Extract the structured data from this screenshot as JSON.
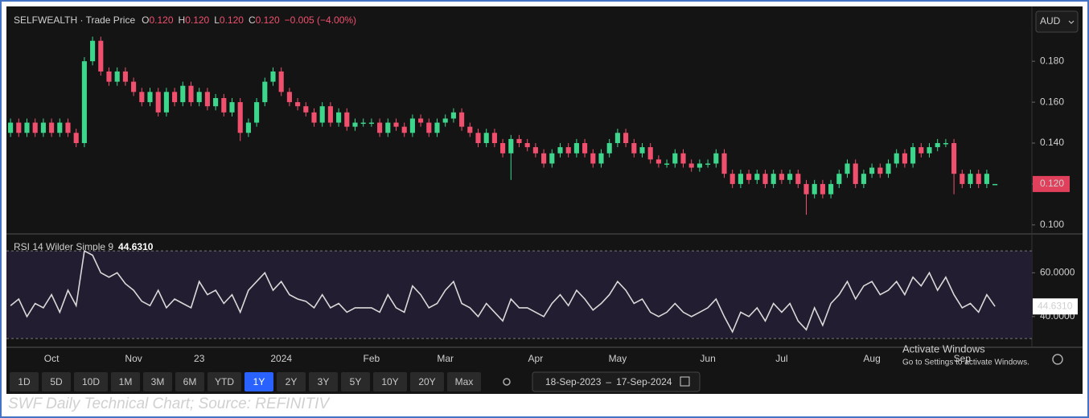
{
  "chart_data": [
    {
      "type": "candlestick",
      "title": "SELFWEALTH · Trade Price",
      "ohlc": [
        {
          "key": "O",
          "value": "0.120"
        },
        {
          "key": "H",
          "value": "0.120"
        },
        {
          "key": "L",
          "value": "0.120"
        },
        {
          "key": "C",
          "value": "0.120"
        }
      ],
      "change": "−0.005 (−4.00%)",
      "currency": "AUD",
      "last_label": "0.120",
      "up_color": "#3dd68c",
      "down_color": "#f0506e",
      "ylim": [
        0.096,
        0.206
      ],
      "yticks": [
        {
          "value": 0.1,
          "label": "0.100"
        },
        {
          "value": 0.12,
          "label": "0.120"
        },
        {
          "value": 0.14,
          "label": "0.140"
        },
        {
          "value": 0.16,
          "label": "0.160"
        },
        {
          "value": 0.18,
          "label": "0.180"
        }
      ],
      "open": [
        0.145,
        0.15,
        0.145,
        0.15,
        0.145,
        0.15,
        0.145,
        0.15,
        0.145,
        0.14,
        0.18,
        0.19,
        0.175,
        0.17,
        0.175,
        0.17,
        0.165,
        0.16,
        0.165,
        0.155,
        0.165,
        0.16,
        0.168,
        0.16,
        0.165,
        0.158,
        0.162,
        0.155,
        0.16,
        0.145,
        0.15,
        0.16,
        0.17,
        0.175,
        0.165,
        0.16,
        0.158,
        0.155,
        0.15,
        0.158,
        0.15,
        0.155,
        0.148,
        0.15,
        0.15,
        0.15,
        0.145,
        0.15,
        0.148,
        0.145,
        0.152,
        0.15,
        0.145,
        0.15,
        0.152,
        0.155,
        0.148,
        0.145,
        0.14,
        0.145,
        0.14,
        0.135,
        0.142,
        0.14,
        0.138,
        0.135,
        0.13,
        0.135,
        0.138,
        0.135,
        0.14,
        0.135,
        0.13,
        0.135,
        0.14,
        0.145,
        0.14,
        0.135,
        0.138,
        0.132,
        0.13,
        0.13,
        0.135,
        0.13,
        0.128,
        0.13,
        0.13,
        0.135,
        0.125,
        0.12,
        0.125,
        0.122,
        0.125,
        0.12,
        0.125,
        0.122,
        0.125,
        0.12,
        0.115,
        0.12,
        0.115,
        0.12,
        0.125,
        0.13,
        0.12,
        0.125,
        0.128,
        0.125,
        0.13,
        0.135,
        0.13,
        0.138,
        0.135,
        0.138,
        0.14,
        0.14,
        0.125,
        0.12,
        0.125,
        0.12,
        0.12,
        null,
        null,
        null,
        null
      ],
      "high": [
        0.152,
        0.152,
        0.152,
        0.152,
        0.152,
        0.152,
        0.152,
        0.152,
        0.147,
        0.182,
        0.192,
        0.192,
        0.177,
        0.177,
        0.177,
        0.172,
        0.167,
        0.167,
        0.167,
        0.167,
        0.167,
        0.17,
        0.17,
        0.167,
        0.167,
        0.164,
        0.164,
        0.162,
        0.162,
        0.152,
        0.162,
        0.172,
        0.177,
        0.177,
        0.167,
        0.162,
        0.16,
        0.157,
        0.16,
        0.16,
        0.157,
        0.157,
        0.152,
        0.152,
        0.152,
        0.152,
        0.152,
        0.152,
        0.15,
        0.154,
        0.154,
        0.152,
        0.152,
        0.154,
        0.157,
        0.157,
        0.15,
        0.147,
        0.147,
        0.147,
        0.142,
        0.144,
        0.144,
        0.142,
        0.14,
        0.137,
        0.137,
        0.14,
        0.14,
        0.142,
        0.142,
        0.137,
        0.137,
        0.142,
        0.147,
        0.147,
        0.142,
        0.14,
        0.14,
        0.134,
        0.132,
        0.137,
        0.137,
        0.132,
        0.132,
        0.132,
        0.137,
        0.137,
        0.127,
        0.127,
        0.127,
        0.127,
        0.127,
        0.127,
        0.127,
        0.127,
        0.127,
        0.122,
        0.122,
        0.122,
        0.122,
        0.127,
        0.132,
        0.132,
        0.127,
        0.13,
        0.13,
        0.132,
        0.137,
        0.137,
        0.14,
        0.14,
        0.14,
        0.142,
        0.142,
        0.142,
        0.127,
        0.127,
        0.127,
        0.127,
        0.12,
        null,
        null,
        null,
        null
      ],
      "low": [
        0.143,
        0.143,
        0.143,
        0.143,
        0.143,
        0.143,
        0.143,
        0.143,
        0.138,
        0.138,
        0.178,
        0.173,
        0.168,
        0.168,
        0.168,
        0.163,
        0.158,
        0.158,
        0.153,
        0.153,
        0.158,
        0.158,
        0.158,
        0.158,
        0.156,
        0.156,
        0.153,
        0.153,
        0.141,
        0.143,
        0.148,
        0.158,
        0.168,
        0.163,
        0.158,
        0.156,
        0.153,
        0.148,
        0.148,
        0.148,
        0.148,
        0.146,
        0.146,
        0.148,
        0.148,
        0.143,
        0.143,
        0.146,
        0.143,
        0.143,
        0.148,
        0.143,
        0.143,
        0.148,
        0.15,
        0.146,
        0.143,
        0.138,
        0.138,
        0.138,
        0.133,
        0.122,
        0.138,
        0.136,
        0.133,
        0.128,
        0.128,
        0.133,
        0.133,
        0.133,
        0.133,
        0.128,
        0.128,
        0.133,
        0.138,
        0.138,
        0.133,
        0.133,
        0.13,
        0.128,
        0.128,
        0.128,
        0.128,
        0.126,
        0.126,
        0.128,
        0.128,
        0.123,
        0.118,
        0.118,
        0.12,
        0.12,
        0.118,
        0.118,
        0.12,
        0.12,
        0.118,
        0.105,
        0.113,
        0.113,
        0.113,
        0.118,
        0.123,
        0.118,
        0.118,
        0.123,
        0.123,
        0.123,
        0.128,
        0.128,
        0.128,
        0.133,
        0.133,
        0.136,
        0.138,
        0.115,
        0.118,
        0.118,
        0.118,
        0.118,
        0.12,
        null,
        null,
        null,
        null
      ],
      "close": [
        0.15,
        0.145,
        0.15,
        0.145,
        0.15,
        0.145,
        0.15,
        0.145,
        0.14,
        0.18,
        0.19,
        0.175,
        0.17,
        0.175,
        0.17,
        0.165,
        0.16,
        0.165,
        0.155,
        0.165,
        0.16,
        0.168,
        0.16,
        0.165,
        0.158,
        0.162,
        0.155,
        0.16,
        0.145,
        0.15,
        0.16,
        0.17,
        0.175,
        0.165,
        0.16,
        0.158,
        0.155,
        0.15,
        0.158,
        0.15,
        0.155,
        0.148,
        0.15,
        0.15,
        0.15,
        0.145,
        0.15,
        0.148,
        0.145,
        0.152,
        0.15,
        0.145,
        0.15,
        0.152,
        0.155,
        0.148,
        0.145,
        0.14,
        0.145,
        0.14,
        0.135,
        0.142,
        0.14,
        0.138,
        0.135,
        0.13,
        0.135,
        0.138,
        0.135,
        0.14,
        0.135,
        0.13,
        0.135,
        0.14,
        0.145,
        0.14,
        0.135,
        0.138,
        0.132,
        0.13,
        0.13,
        0.135,
        0.13,
        0.128,
        0.13,
        0.13,
        0.135,
        0.125,
        0.12,
        0.125,
        0.122,
        0.125,
        0.12,
        0.125,
        0.122,
        0.125,
        0.12,
        0.115,
        0.12,
        0.115,
        0.12,
        0.125,
        0.13,
        0.12,
        0.125,
        0.128,
        0.125,
        0.13,
        0.135,
        0.13,
        0.138,
        0.135,
        0.138,
        0.14,
        0.14,
        0.125,
        0.12,
        0.125,
        0.12,
        0.125,
        0.12,
        null,
        null,
        null,
        null
      ]
    },
    {
      "type": "line",
      "categories": [
        null,
        null,
        null,
        null,
        null,
        "Oct",
        null,
        null,
        null,
        null,
        null,
        null,
        null,
        null,
        null,
        "Nov",
        null,
        null,
        null,
        null,
        null,
        null,
        null,
        "23",
        null,
        null,
        null,
        null,
        null,
        null,
        null,
        null,
        null,
        "2024",
        null,
        null,
        null,
        null,
        null,
        null,
        null,
        null,
        null,
        null,
        "Feb",
        null,
        null,
        null,
        null,
        null,
        null,
        null,
        null,
        "Mar",
        null,
        null,
        null,
        null,
        null,
        null,
        null,
        null,
        null,
        null,
        "Apr",
        null,
        null,
        null,
        null,
        null,
        null,
        null,
        null,
        null,
        "May",
        null,
        null,
        null,
        null,
        null,
        null,
        null,
        null,
        null,
        null,
        "Jun",
        null,
        null,
        null,
        null,
        null,
        null,
        null,
        null,
        "Jul",
        null,
        null,
        null,
        null,
        null,
        null,
        null,
        null,
        null,
        null,
        "Aug",
        null,
        null,
        null,
        null,
        null,
        null,
        null,
        null,
        null,
        null,
        "Sep",
        null,
        null,
        null,
        null,
        null,
        null,
        null,
        null
      ],
      "series": [
        {
          "name": "RSI 14 Wilder Simple 9",
          "color": "#d9d9d9",
          "values": [
            45,
            48,
            40,
            46,
            44,
            50,
            42,
            52,
            45,
            70,
            68,
            60,
            58,
            60,
            55,
            52,
            47,
            45,
            52,
            44,
            48,
            46,
            44,
            56,
            50,
            52,
            46,
            50,
            42,
            52,
            56,
            60,
            52,
            56,
            50,
            48,
            47,
            44,
            50,
            44,
            46,
            42,
            44,
            44,
            44,
            42,
            50,
            44,
            42,
            54,
            50,
            44,
            46,
            52,
            56,
            46,
            44,
            40,
            46,
            42,
            38,
            48,
            44,
            44,
            42,
            40,
            46,
            50,
            45,
            52,
            48,
            43,
            46,
            50,
            56,
            52,
            46,
            48,
            42,
            40,
            42,
            46,
            42,
            40,
            42,
            44,
            48,
            40,
            33,
            42,
            40,
            44,
            38,
            46,
            42,
            46,
            38,
            34,
            44,
            36,
            46,
            50,
            56,
            48,
            54,
            56,
            50,
            52,
            56,
            50,
            58,
            54,
            60,
            52,
            58,
            50,
            44,
            46,
            42,
            50,
            44.631,
            null,
            null,
            null,
            null
          ]
        }
      ],
      "last_label": "44.6310",
      "levels": [
        30,
        70
      ],
      "ylim": [
        26,
        77
      ],
      "yticks": [
        {
          "value": 40,
          "label": "40.0000"
        },
        {
          "value": 60,
          "label": "60.0000"
        }
      ]
    }
  ],
  "toolbar": {
    "ranges": [
      "1D",
      "5D",
      "10D",
      "1M",
      "3M",
      "6M",
      "YTD",
      "1Y",
      "2Y",
      "3Y",
      "5Y",
      "10Y",
      "20Y",
      "Max"
    ],
    "active": "1Y",
    "date_from": "18-Sep-2023",
    "date_sep": "–",
    "date_to": "17-Sep-2024"
  },
  "watermark": {
    "line1": "Activate Windows",
    "line2": "Go to Settings to activate Windows."
  },
  "caption": "SWF Daily Technical Chart; Source: REFINITIV"
}
